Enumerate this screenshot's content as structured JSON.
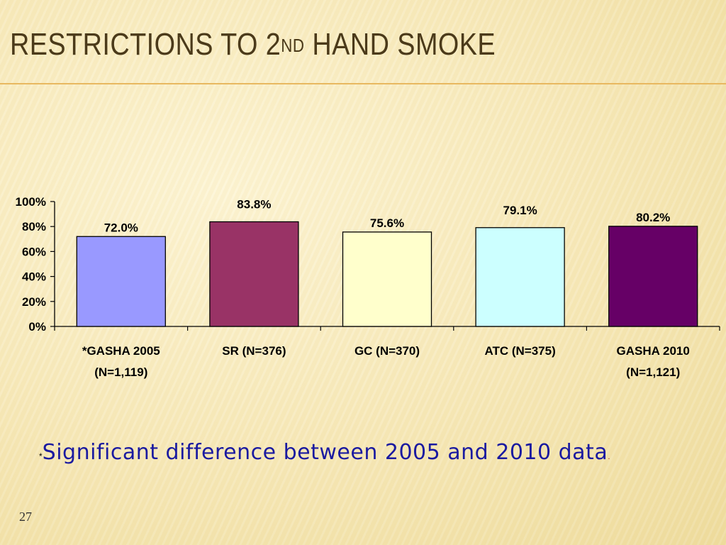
{
  "slide": {
    "title_pre": "RESTRICTIONS TO 2",
    "title_sup": "ND",
    "title_post": " HAND SMOKE",
    "footnote_star": "*",
    "footnote": "Significant difference between 2005 and 2010 data",
    "footnote_end": ".",
    "slide_number": "27"
  },
  "chart_data": {
    "type": "bar",
    "categories": [
      [
        "*GASHA 2005",
        "(N=1,119)"
      ],
      [
        "SR (N=376)"
      ],
      [
        "GC (N=370)"
      ],
      [
        "ATC (N=375)"
      ],
      [
        "GASHA 2010",
        "(N=1,121)"
      ]
    ],
    "values": [
      72.0,
      83.8,
      75.6,
      79.1,
      80.2
    ],
    "value_labels": [
      "72.0%",
      "83.8%",
      "75.6%",
      "79.1%",
      "80.2%"
    ],
    "colors": [
      "#9999ff",
      "#993366",
      "#ffffcc",
      "#ccffff",
      "#660066"
    ],
    "ylim": [
      0,
      100
    ],
    "y_ticks": [
      "0%",
      "20%",
      "40%",
      "60%",
      "80%",
      "100%"
    ],
    "grid": false,
    "legend": "none"
  }
}
